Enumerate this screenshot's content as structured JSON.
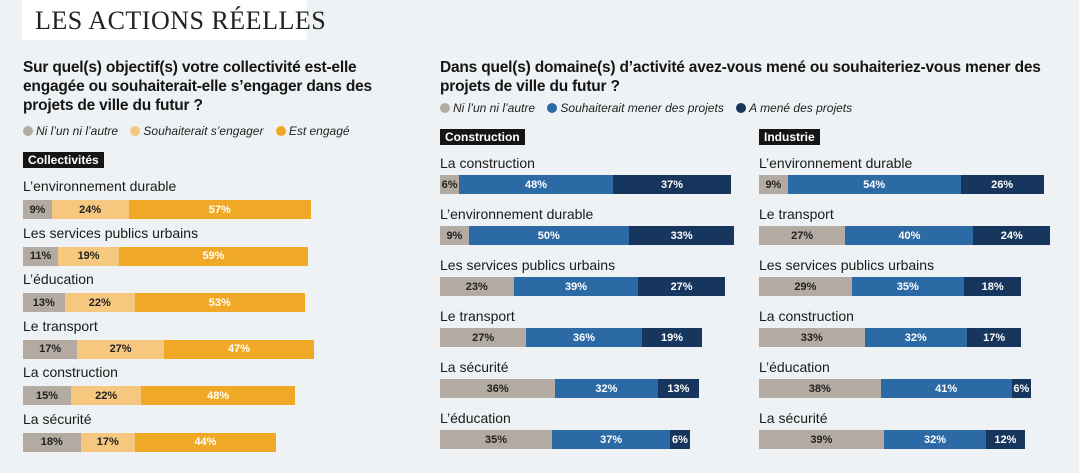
{
  "header": {
    "title": "LES ACTIONS RÉELLES"
  },
  "colors": {
    "neither": "#b3aaa2",
    "wish_left": "#f6c77e",
    "engaged": "#f0a926",
    "wish_right": "#2c6aa6",
    "done": "#16365d"
  },
  "left": {
    "question": "Sur quel(s) objectif(s) votre collectivité est-elle engagée ou souhaiterait-elle s’engager dans des projets de ville du futur ?",
    "legend": [
      "Ni l’un ni l’autre",
      "Souhaiterait s’engager",
      "Est engagé"
    ]
  },
  "right": {
    "question": "Dans quel(s) domaine(s) d’activité avez-vous mené ou souhaiteriez-vous mener des projets de ville du futur ?",
    "legend": [
      "Ni l’un ni l’autre",
      "Souhaiterait mener des projets",
      "A mené des projets"
    ]
  },
  "chart_data": [
    {
      "type": "bar",
      "stacked": true,
      "orientation": "horizontal",
      "section": "Collectivités",
      "categories": [
        "L’environnement durable",
        "Les services publics urbains",
        "L’éducation",
        "Le transport",
        "La construction",
        "La sécurité"
      ],
      "series": [
        {
          "name": "Ni l’un ni l’autre",
          "values": [
            9,
            11,
            13,
            17,
            15,
            18
          ]
        },
        {
          "name": "Souhaiterait s’engager",
          "values": [
            24,
            19,
            22,
            27,
            22,
            17
          ]
        },
        {
          "name": "Est engagé",
          "values": [
            57,
            59,
            53,
            47,
            48,
            44
          ]
        }
      ]
    },
    {
      "type": "bar",
      "stacked": true,
      "orientation": "horizontal",
      "section": "Construction",
      "categories": [
        "La construction",
        "L’environnement durable",
        "Les services publics urbains",
        "Le transport",
        "La sécurité",
        "L’éducation"
      ],
      "series": [
        {
          "name": "Ni l’un ni l’autre",
          "values": [
            6,
            9,
            23,
            27,
            36,
            35
          ]
        },
        {
          "name": "Souhaiterait mener des projets",
          "values": [
            48,
            50,
            39,
            36,
            32,
            37
          ]
        },
        {
          "name": "A mené des projets",
          "values": [
            37,
            33,
            27,
            19,
            13,
            6
          ]
        }
      ]
    },
    {
      "type": "bar",
      "stacked": true,
      "orientation": "horizontal",
      "section": "Industrie",
      "categories": [
        "L’environnement durable",
        "Le transport",
        "Les services publics urbains",
        "La construction",
        "L’éducation",
        "La sécurité"
      ],
      "series": [
        {
          "name": "Ni l’un ni l’autre",
          "values": [
            9,
            27,
            29,
            33,
            38,
            39
          ]
        },
        {
          "name": "Souhaiterait mener des projets",
          "values": [
            54,
            40,
            35,
            32,
            41,
            32
          ]
        },
        {
          "name": "A mené des projets",
          "values": [
            26,
            24,
            18,
            17,
            6,
            12
          ]
        }
      ]
    }
  ]
}
